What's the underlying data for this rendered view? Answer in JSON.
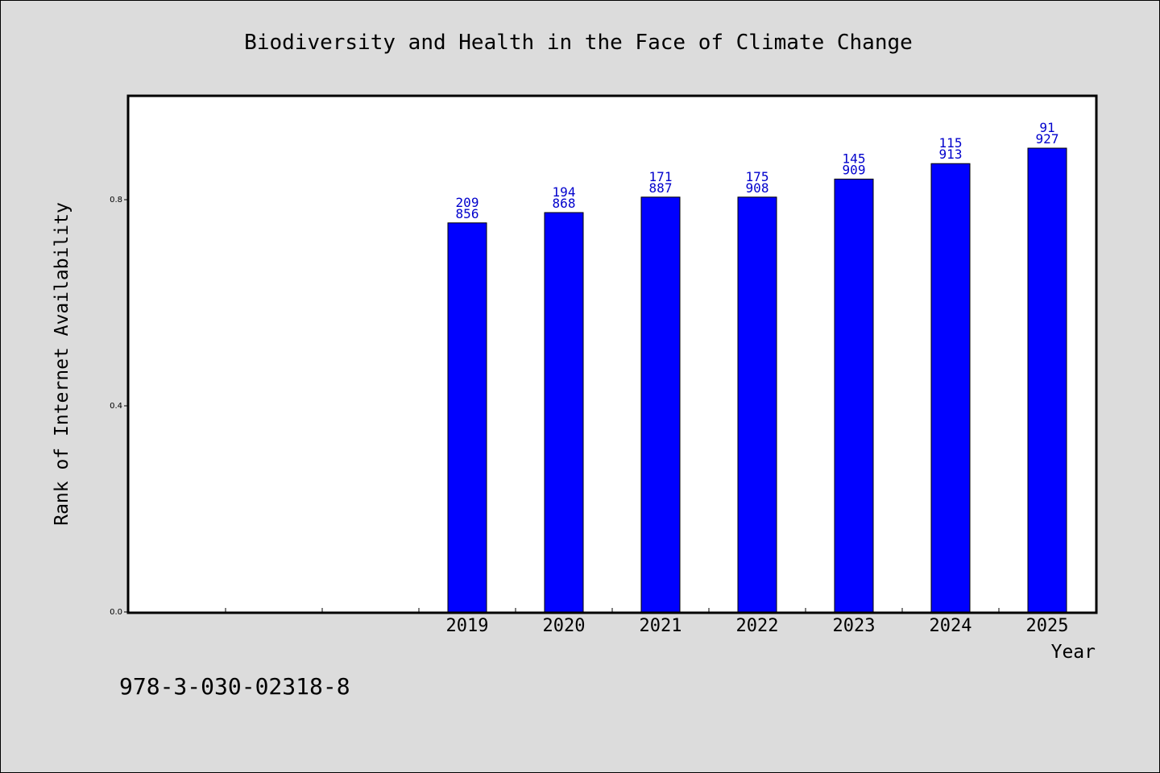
{
  "chart_data": {
    "type": "bar",
    "title": "Biodiversity and Health in the Face of Climate Change",
    "xlabel": "Year",
    "ylabel": "Rank of Internet Availability",
    "categories": [
      "",
      "",
      "",
      "2019",
      "2020",
      "2021",
      "2022",
      "2023",
      "2024",
      "2025"
    ],
    "values": [
      null,
      null,
      null,
      0.755,
      0.775,
      0.805,
      0.805,
      0.84,
      0.87,
      0.9
    ],
    "data_labels": [
      null,
      null,
      null,
      [
        "209",
        "856"
      ],
      [
        "194",
        "868"
      ],
      [
        "171",
        "887"
      ],
      [
        "175",
        "908"
      ],
      [
        "145",
        "909"
      ],
      [
        "115",
        "913"
      ],
      [
        "91",
        "927"
      ]
    ],
    "ylim": [
      0,
      1.0
    ],
    "yticks": [
      0.0,
      0.4,
      0.8
    ],
    "ytick_labels": [
      "0.0",
      "0.4",
      "0.8"
    ],
    "grid": false,
    "legend": "none",
    "bar_color": "#0000ff",
    "label_color": "#0000cc"
  },
  "footer": {
    "isbn": "978-3-030-02318-8"
  }
}
